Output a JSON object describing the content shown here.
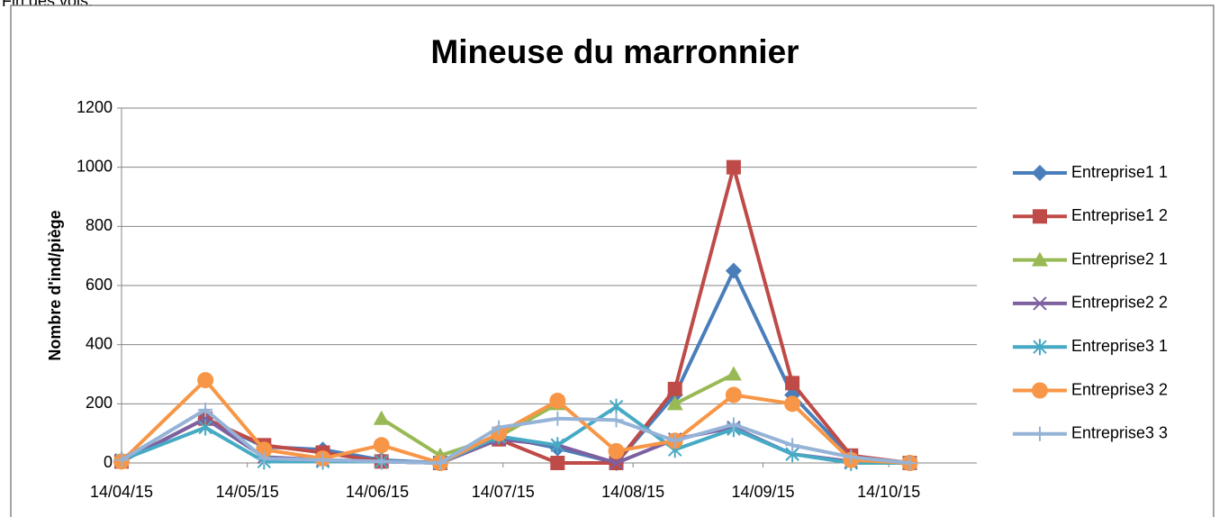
{
  "caption": "Fin des vols.",
  "chart_data": {
    "type": "line",
    "title": "Mineuse du marronnier",
    "y_label": "Nombre d'ind/piège",
    "x": [
      "2015-04-14",
      "2015-05-04",
      "2015-05-18",
      "2015-06-01",
      "2015-06-15",
      "2015-06-29",
      "2015-07-13",
      "2015-07-27",
      "2015-08-10",
      "2015-08-24",
      "2015-09-07",
      "2015-09-21",
      "2015-10-05",
      "2015-10-19"
    ],
    "xlim": [
      "2015-04-14",
      "2015-11-04"
    ],
    "xticks": [
      {
        "value": "2015-04-14",
        "label": "14/04/15"
      },
      {
        "value": "2015-05-14",
        "label": "14/05/15"
      },
      {
        "value": "2015-06-14",
        "label": "14/06/15"
      },
      {
        "value": "2015-07-14",
        "label": "14/07/15"
      },
      {
        "value": "2015-08-14",
        "label": "14/08/15"
      },
      {
        "value": "2015-09-14",
        "label": "14/09/15"
      },
      {
        "value": "2015-10-14",
        "label": "14/10/15"
      }
    ],
    "ylim": [
      0,
      1200
    ],
    "yticks": [
      0,
      200,
      400,
      600,
      800,
      1000,
      1200
    ],
    "grid": true,
    "legend": "right",
    "series": [
      {
        "name": "Entreprise1 1",
        "color": "#4a7ebb",
        "marker": "diamond",
        "values": [
          5,
          150,
          55,
          45,
          10,
          0,
          90,
          50,
          0,
          230,
          650,
          230,
          20,
          0
        ]
      },
      {
        "name": "Entreprise1 2",
        "color": "#be4b48",
        "marker": "square",
        "values": [
          5,
          150,
          60,
          35,
          5,
          0,
          80,
          0,
          0,
          250,
          1000,
          270,
          25,
          0
        ]
      },
      {
        "name": "Entreprise2 1",
        "color": "#98b954",
        "marker": "triangle",
        "values": [
          null,
          null,
          null,
          null,
          150,
          25,
          90,
          200,
          null,
          200,
          300,
          null,
          null,
          null
        ]
      },
      {
        "name": "Entreprise2 2",
        "color": "#7d60a0",
        "marker": "x",
        "values": [
          5,
          150,
          20,
          10,
          5,
          0,
          80,
          60,
          0,
          80,
          120,
          30,
          5,
          0
        ]
      },
      {
        "name": "Entreprise3 1",
        "color": "#46aac5",
        "marker": "star",
        "values": [
          10,
          120,
          5,
          5,
          5,
          0,
          90,
          60,
          190,
          45,
          115,
          30,
          0,
          0
        ]
      },
      {
        "name": "Entreprise3 2",
        "color": "#f79646",
        "marker": "circle",
        "values": [
          5,
          280,
          45,
          15,
          60,
          0,
          100,
          210,
          40,
          75,
          230,
          200,
          10,
          0
        ]
      },
      {
        "name": "Entreprise3 3",
        "color": "#95b3d7",
        "marker": "plus",
        "values": [
          10,
          180,
          15,
          10,
          5,
          0,
          120,
          150,
          145,
          75,
          130,
          60,
          20,
          0
        ]
      }
    ]
  }
}
